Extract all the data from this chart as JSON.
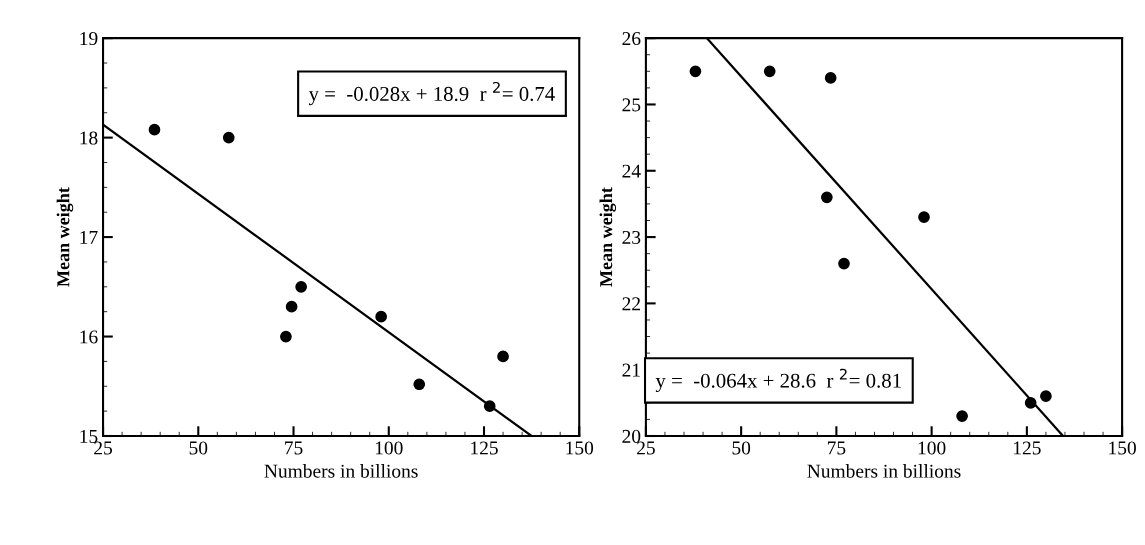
{
  "chart_data": [
    {
      "type": "scatter",
      "xlabel": "Numbers in billions",
      "ylabel": "Mean weight",
      "xlim": [
        25,
        150
      ],
      "xticks": [
        25,
        50,
        75,
        100,
        125,
        150
      ],
      "ylim": [
        15,
        19
      ],
      "yticks": [
        15,
        16,
        17,
        18,
        19
      ],
      "grid": false,
      "annotations": [
        "y =  -0.028x + 18.9  r $^{2}$= 0.74"
      ],
      "series": [
        {
          "marker": "circle",
          "color": "#000000",
          "x": [
            38.5,
            58,
            73,
            74.5,
            77,
            98,
            108,
            126.5,
            130
          ],
          "values": [
            18.08,
            18.0,
            16.0,
            16.3,
            16.5,
            16.2,
            15.52,
            15.3,
            15.8
          ]
        },
        {
          "type": "line",
          "color": "#000000",
          "line_style": "solid",
          "x": [
            25,
            137.5
          ],
          "values": [
            18.13,
            15.0
          ]
        }
      ]
    },
    {
      "type": "scatter",
      "xlabel": "Numbers in billions",
      "ylabel": "Mean weight",
      "xlim": [
        25,
        150
      ],
      "xticks": [
        25,
        50,
        75,
        100,
        125,
        150
      ],
      "ylim": [
        20,
        26
      ],
      "yticks": [
        20,
        21,
        22,
        23,
        24,
        25,
        26
      ],
      "grid": false,
      "annotations": [
        "y =  -0.064x + 28.6  r $^{2}$= 0.81"
      ],
      "series": [
        {
          "marker": "circle",
          "color": "#000000",
          "x": [
            38,
            57.5,
            73.5,
            72.5,
            77,
            98,
            108,
            126,
            130
          ],
          "values": [
            25.5,
            25.5,
            25.4,
            23.6,
            22.6,
            23.3,
            20.3,
            20.5,
            20.6
          ]
        },
        {
          "type": "line",
          "color": "#000000",
          "line_style": "solid",
          "x": [
            41,
            134.5
          ],
          "values": [
            26.0,
            20.0
          ]
        }
      ]
    }
  ]
}
